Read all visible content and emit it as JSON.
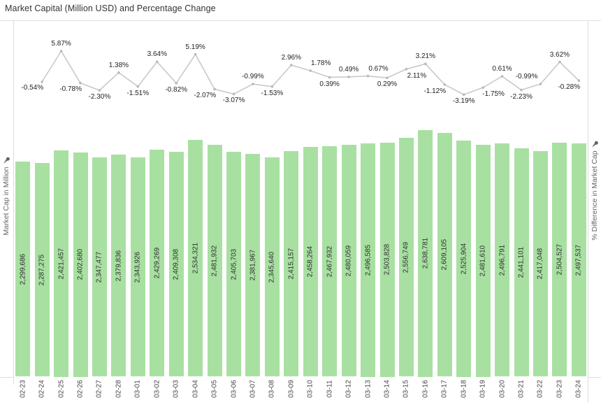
{
  "title": "Market Capital (Million USD) and Percentage Change",
  "axes": {
    "left_label": "Market Cap in Million",
    "right_label": "% Difference in Market Cap",
    "left_icon": "pin-icon",
    "right_icon": "pin-icon"
  },
  "colors": {
    "bar": "#a8e0a2",
    "line": "#c9c9c9",
    "marker": "#b9b9b9",
    "axis_line": "#dcdcdc",
    "title_text": "#333333",
    "axis_label_text": "#666666",
    "data_label_text": "#1f1f1f",
    "pin": "#5a6473"
  },
  "chart_data": [
    {
      "type": "bar",
      "name": "market-cap",
      "title": "Market Capital (Million USD) and Percentage Change",
      "xlabel": "",
      "ylabel": "Market Cap in Million",
      "ylim": [
        0,
        2700000
      ],
      "grid": false,
      "categories": [
        "02-23",
        "02-24",
        "02-25",
        "02-26",
        "02-27",
        "02-28",
        "03-01",
        "03-02",
        "03-03",
        "03-04",
        "03-05",
        "03-06",
        "03-07",
        "03-08",
        "03-09",
        "03-10",
        "03-11",
        "03-12",
        "03-13",
        "03-14",
        "03-15",
        "03-16",
        "03-17",
        "03-18",
        "03-19",
        "03-20",
        "03-21",
        "03-22",
        "03-23",
        "03-24"
      ],
      "values": [
        2299686,
        2287275,
        2421457,
        2402680,
        2347477,
        2379836,
        2343926,
        2429269,
        2409308,
        2534321,
        2481932,
        2405703,
        2381967,
        2345640,
        2415157,
        2458264,
        2467932,
        2480059,
        2496585,
        2503828,
        2556749,
        2638781,
        2609105,
        2525904,
        2481610,
        2496791,
        2441101,
        2417048,
        2504527,
        2497537
      ]
    },
    {
      "type": "line",
      "name": "percentage-change",
      "ylabel": "% Difference in Market Cap",
      "axis": "right",
      "grid": false,
      "x": [
        "02-24",
        "02-25",
        "02-26",
        "02-27",
        "02-28",
        "03-01",
        "03-02",
        "03-03",
        "03-04",
        "03-05",
        "03-06",
        "03-07",
        "03-08",
        "03-09",
        "03-10",
        "03-11",
        "03-12",
        "03-13",
        "03-14",
        "03-15",
        "03-16",
        "03-17",
        "03-18",
        "03-19",
        "03-20",
        "03-21",
        "03-22",
        "03-23",
        "03-24"
      ],
      "values": [
        -0.54,
        5.87,
        -0.78,
        -2.3,
        1.38,
        -1.51,
        3.64,
        -0.82,
        5.19,
        -2.07,
        -3.07,
        -0.99,
        -1.53,
        2.96,
        1.78,
        0.39,
        0.49,
        0.67,
        0.29,
        2.11,
        3.21,
        -1.12,
        -3.19,
        -1.75,
        0.61,
        -2.23,
        -0.99,
        3.62,
        -0.28
      ],
      "point_labels": [
        "-0.54%",
        "5.87%",
        "-0.78%",
        "-2.30%",
        "1.38%",
        "-1.51%",
        "3.64%",
        "-0.82%",
        "5.19%",
        "-2.07%",
        "-3.07%",
        "-0.99%",
        "-1.53%",
        "2.96%",
        "1.78%",
        "0.39%",
        "0.49%",
        "0.67%",
        "0.29%",
        "2.11%",
        "3.21%",
        "-1.12%",
        "-3.19%",
        "-1.75%",
        "0.61%",
        "-2.23%",
        "-0.99%",
        "3.62%",
        "-0.28%"
      ],
      "label_sides": [
        "left",
        "above",
        "left",
        "below",
        "above",
        "below",
        "above",
        "below",
        "above",
        "left",
        "below",
        "above",
        "below",
        "above",
        "above-right",
        "below",
        "above",
        "above-right",
        "below",
        "below-right",
        "above",
        "below-left",
        "below",
        "below-right",
        "above",
        "below",
        "left-above",
        "above",
        "below-left"
      ]
    }
  ]
}
